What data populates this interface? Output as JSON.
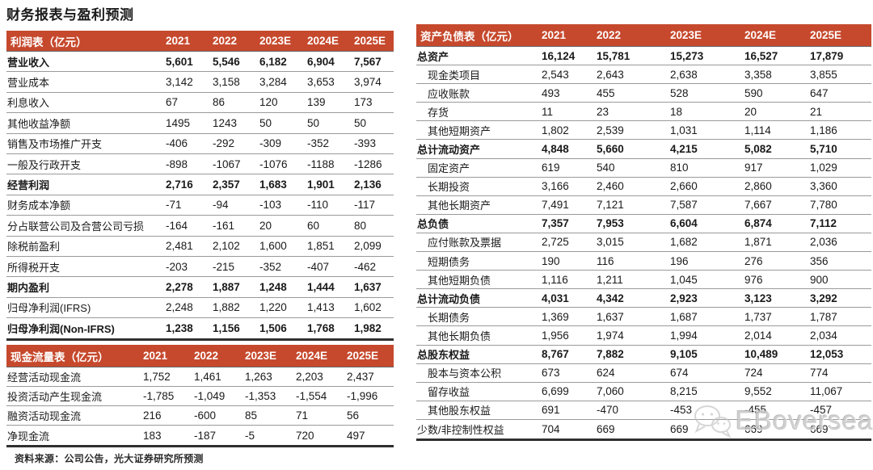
{
  "page_title": "财务报表与盈利预测",
  "source_note": "资料来源：公司公告，光大证券研究所预测",
  "watermark": {
    "text": "EBoversea",
    "icon": "wechat-icon"
  },
  "colors": {
    "header_bg": "#C6492D",
    "header_text": "#FFFFFF",
    "row_line": "#9A9A9A",
    "table_bottom_line": "#2F2F2F",
    "text": "#1A1A1A",
    "watermark_gray": "#C8C8C8"
  },
  "columns": [
    "2021",
    "2022",
    "2023E",
    "2024E",
    "2025E"
  ],
  "tables": {
    "income": {
      "title": "利润表（亿元）",
      "rows": [
        {
          "label": "营业收入",
          "bold": true,
          "indent": false,
          "values": [
            "5,601",
            "5,546",
            "6,182",
            "6,904",
            "7,567"
          ]
        },
        {
          "label": "营业成本",
          "bold": false,
          "indent": false,
          "values": [
            "3,142",
            "3,158",
            "3,284",
            "3,653",
            "3,974"
          ]
        },
        {
          "label": "利息收入",
          "bold": false,
          "indent": false,
          "values": [
            "67",
            "86",
            "120",
            "139",
            "173"
          ]
        },
        {
          "label": "其他收益净额",
          "bold": false,
          "indent": false,
          "values": [
            "1495",
            "1243",
            "50",
            "50",
            "50"
          ]
        },
        {
          "label": "销售及市场推广开支",
          "bold": false,
          "indent": false,
          "values": [
            "-406",
            "-292",
            "-309",
            "-352",
            "-393"
          ]
        },
        {
          "label": "一般及行政开支",
          "bold": false,
          "indent": false,
          "values": [
            "-898",
            "-1067",
            "-1076",
            "-1188",
            "-1286"
          ]
        },
        {
          "label": "经营利润",
          "bold": true,
          "indent": false,
          "values": [
            "2,716",
            "2,357",
            "1,683",
            "1,901",
            "2,136"
          ]
        },
        {
          "label": "财务成本净额",
          "bold": false,
          "indent": false,
          "values": [
            "-71",
            "-94",
            "-103",
            "-110",
            "-117"
          ]
        },
        {
          "label": "分占联营公司及合营公司亏损",
          "bold": false,
          "indent": false,
          "values": [
            "-164",
            "-161",
            "20",
            "60",
            "80"
          ]
        },
        {
          "label": "除税前盈利",
          "bold": false,
          "indent": false,
          "values": [
            "2,481",
            "2,102",
            "1,600",
            "1,851",
            "2,099"
          ]
        },
        {
          "label": "所得税开支",
          "bold": false,
          "indent": false,
          "values": [
            "-203",
            "-215",
            "-352",
            "-407",
            "-462"
          ]
        },
        {
          "label": "期内盈利",
          "bold": true,
          "indent": false,
          "values": [
            "2,278",
            "1,887",
            "1,248",
            "1,444",
            "1,637"
          ]
        },
        {
          "label": "归母净利润(IFRS)",
          "bold": false,
          "indent": false,
          "values": [
            "2,248",
            "1,882",
            "1,220",
            "1,413",
            "1,602"
          ]
        },
        {
          "label": "归母净利润(Non-IFRS)",
          "bold": true,
          "indent": false,
          "values": [
            "1,238",
            "1,156",
            "1,506",
            "1,768",
            "1,982"
          ]
        }
      ]
    },
    "cashflow": {
      "title": "现金流量表（亿元）",
      "rows": [
        {
          "label": "经营活动现金流",
          "bold": false,
          "indent": false,
          "values": [
            "1,752",
            "1,461",
            "1,263",
            "2,203",
            "2,437"
          ]
        },
        {
          "label": "投资活动产生现金流",
          "bold": false,
          "indent": false,
          "values": [
            "-1,785",
            "-1,049",
            "-1,353",
            "-1,554",
            "-1,996"
          ]
        },
        {
          "label": "融资活动现金流",
          "bold": false,
          "indent": false,
          "values": [
            "216",
            "-600",
            "85",
            "71",
            "56"
          ]
        },
        {
          "label": "净现金流",
          "bold": false,
          "indent": false,
          "values": [
            "183",
            "-187",
            "-5",
            "720",
            "497"
          ]
        }
      ]
    },
    "balance": {
      "title": "资产负债表（亿元）",
      "rows": [
        {
          "label": "总资产",
          "bold": true,
          "indent": false,
          "values": [
            "16,124",
            "15,781",
            "15,273",
            "16,527",
            "17,879"
          ]
        },
        {
          "label": "现金类项目",
          "bold": false,
          "indent": true,
          "values": [
            "2,543",
            "2,643",
            "2,638",
            "3,358",
            "3,855"
          ]
        },
        {
          "label": "应收账款",
          "bold": false,
          "indent": true,
          "values": [
            "493",
            "455",
            "528",
            "590",
            "647"
          ]
        },
        {
          "label": "存货",
          "bold": false,
          "indent": true,
          "values": [
            "11",
            "23",
            "18",
            "20",
            "21"
          ]
        },
        {
          "label": "其他短期资产",
          "bold": false,
          "indent": true,
          "values": [
            "1,802",
            "2,539",
            "1,031",
            "1,114",
            "1,186"
          ]
        },
        {
          "label": "总计流动资产",
          "bold": true,
          "indent": false,
          "values": [
            "4,848",
            "5,660",
            "4,215",
            "5,082",
            "5,710"
          ]
        },
        {
          "label": "固定资产",
          "bold": false,
          "indent": true,
          "values": [
            "619",
            "540",
            "810",
            "917",
            "1,029"
          ]
        },
        {
          "label": "长期投资",
          "bold": false,
          "indent": true,
          "values": [
            "3,166",
            "2,460",
            "2,660",
            "2,860",
            "3,360"
          ]
        },
        {
          "label": "其他长期资产",
          "bold": false,
          "indent": true,
          "values": [
            "7,491",
            "7,121",
            "7,587",
            "7,667",
            "7,780"
          ]
        },
        {
          "label": "总负债",
          "bold": true,
          "indent": false,
          "values": [
            "7,357",
            "7,953",
            "6,604",
            "6,874",
            "7,112"
          ]
        },
        {
          "label": "应付账款及票据",
          "bold": false,
          "indent": true,
          "values": [
            "2,725",
            "3,015",
            "1,682",
            "1,871",
            "2,036"
          ]
        },
        {
          "label": "短期债务",
          "bold": false,
          "indent": true,
          "values": [
            "190",
            "116",
            "196",
            "276",
            "356"
          ]
        },
        {
          "label": "其他短期负债",
          "bold": false,
          "indent": true,
          "values": [
            "1,116",
            "1,211",
            "1,045",
            "976",
            "900"
          ]
        },
        {
          "label": "总计流动负债",
          "bold": true,
          "indent": false,
          "values": [
            "4,031",
            "4,342",
            "2,923",
            "3,123",
            "3,292"
          ]
        },
        {
          "label": "长期债务",
          "bold": false,
          "indent": true,
          "values": [
            "1,369",
            "1,637",
            "1,687",
            "1,737",
            "1,787"
          ]
        },
        {
          "label": "其他长期负债",
          "bold": false,
          "indent": true,
          "values": [
            "1,956",
            "1,974",
            "1,994",
            "2,014",
            "2,034"
          ]
        },
        {
          "label": "总股东权益",
          "bold": true,
          "indent": false,
          "values": [
            "8,767",
            "7,882",
            "9,105",
            "10,489",
            "12,053"
          ]
        },
        {
          "label": "股本与资本公积",
          "bold": false,
          "indent": true,
          "values": [
            "673",
            "624",
            "674",
            "724",
            "774"
          ]
        },
        {
          "label": "留存收益",
          "bold": false,
          "indent": true,
          "values": [
            "6,699",
            "7,060",
            "8,215",
            "9,552",
            "11,067"
          ]
        },
        {
          "label": "其他股东权益",
          "bold": false,
          "indent": true,
          "values": [
            "691",
            "-470",
            "-453",
            "-455",
            "-457"
          ]
        },
        {
          "label": "少数/非控制性权益",
          "bold": false,
          "indent": false,
          "values": [
            "704",
            "669",
            "669",
            "669",
            "669"
          ]
        }
      ]
    }
  }
}
